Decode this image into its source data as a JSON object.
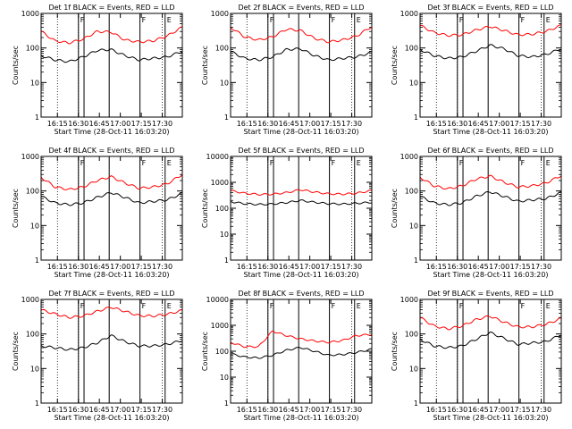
{
  "figure": {
    "ylabel": "Counts/sec",
    "xlabel": "Start Time (28-Oct-11 16:03:20)",
    "time_ticks": [
      "16:15",
      "16:30",
      "16:45",
      "17:00",
      "17:15",
      "17:30"
    ],
    "y_ticks": [
      "1",
      "10",
      "100",
      "1000",
      "10000"
    ],
    "colors": {
      "events": "#000000",
      "lld": "#ff0000",
      "axes": "#000000",
      "background": "#ffffff"
    }
  },
  "chart_data": [
    {
      "type": "line",
      "title": "Det 1f BLACK = Events, RED = LLD",
      "xlabel": "Start Time (28-Oct-11 16:03:20)",
      "ylabel": "Counts/sec",
      "yscale": "log",
      "ylim": [
        1,
        1000
      ],
      "x_unit": "minutes since 16:03:20",
      "annotations": [
        "F",
        "F",
        "E"
      ],
      "dotted_lines_x": [
        11.7,
        26.7,
        86.7
      ],
      "solid_lines_x": [
        26.7,
        30.7,
        48.7,
        70.7,
        88.7
      ],
      "x": [
        0,
        10,
        20,
        30,
        40,
        50,
        60,
        70,
        80,
        90,
        101
      ],
      "series": [
        {
          "name": "LLD",
          "color": "red",
          "values": [
            300,
            160,
            140,
            180,
            300,
            290,
            170,
            150,
            160,
            220,
            400
          ]
        },
        {
          "name": "Events",
          "color": "black",
          "values": [
            60,
            45,
            40,
            55,
            85,
            90,
            60,
            45,
            50,
            55,
            80
          ]
        }
      ]
    },
    {
      "type": "line",
      "title": "Det 2f BLACK = Events, RED = LLD",
      "xlabel": "Start Time (28-Oct-11 16:03:20)",
      "ylabel": "Counts/sec",
      "yscale": "log",
      "ylim": [
        1,
        1000
      ],
      "x_unit": "minutes since 16:03:20",
      "annotations": [
        "F",
        "F",
        "E"
      ],
      "dotted_lines_x": [
        11.7,
        26.7,
        86.7
      ],
      "solid_lines_x": [
        26.7,
        30.7,
        48.7,
        70.7,
        88.7
      ],
      "x": [
        0,
        10,
        20,
        30,
        40,
        50,
        60,
        70,
        80,
        90,
        101
      ],
      "series": [
        {
          "name": "LLD",
          "color": "red",
          "values": [
            400,
            210,
            170,
            210,
            350,
            320,
            190,
            150,
            170,
            220,
            420
          ]
        },
        {
          "name": "Events",
          "color": "black",
          "values": [
            80,
            50,
            45,
            55,
            90,
            95,
            60,
            45,
            50,
            55,
            75
          ]
        }
      ]
    },
    {
      "type": "line",
      "title": "Det 3f BLACK = Events, RED = LLD",
      "xlabel": "Start Time (28-Oct-11 16:03:20)",
      "ylabel": "Counts/sec",
      "yscale": "log",
      "ylim": [
        1,
        1000
      ],
      "x_unit": "minutes since 16:03:20",
      "annotations": [
        "F",
        "F",
        "E"
      ],
      "dotted_lines_x": [
        11.7,
        26.7,
        86.7
      ],
      "solid_lines_x": [
        26.7,
        30.7,
        48.7,
        70.7,
        88.7
      ],
      "x": [
        0,
        10,
        20,
        30,
        40,
        50,
        60,
        70,
        80,
        90,
        101
      ],
      "series": [
        {
          "name": "LLD",
          "color": "red",
          "values": [
            450,
            280,
            230,
            240,
            330,
            420,
            320,
            240,
            250,
            300,
            450
          ]
        },
        {
          "name": "Events",
          "color": "black",
          "values": [
            90,
            60,
            50,
            55,
            80,
            120,
            95,
            60,
            55,
            65,
            95
          ]
        }
      ]
    },
    {
      "type": "line",
      "title": "Det 4f BLACK = Events, RED = LLD",
      "xlabel": "Start Time (28-Oct-11 16:03:20)",
      "ylabel": "Counts/sec",
      "yscale": "log",
      "ylim": [
        1,
        1000
      ],
      "x_unit": "minutes since 16:03:20",
      "annotations": [
        "F",
        "F",
        "E"
      ],
      "dotted_lines_x": [
        11.7,
        26.7,
        86.7
      ],
      "solid_lines_x": [
        26.7,
        30.7,
        48.7,
        70.7,
        88.7
      ],
      "x": [
        0,
        10,
        20,
        30,
        40,
        50,
        60,
        70,
        80,
        90,
        101
      ],
      "series": [
        {
          "name": "LLD",
          "color": "red",
          "values": [
            250,
            130,
            110,
            130,
            200,
            260,
            170,
            120,
            130,
            160,
            300
          ]
        },
        {
          "name": "Events",
          "color": "black",
          "values": [
            70,
            45,
            40,
            45,
            65,
            90,
            65,
            45,
            50,
            55,
            85
          ]
        }
      ]
    },
    {
      "type": "line",
      "title": "Det 5f BLACK = Events, RED = LLD",
      "xlabel": "Start Time (28-Oct-11 16:03:20)",
      "ylabel": "Counts/sec",
      "yscale": "log",
      "ylim": [
        1,
        10000
      ],
      "x_unit": "minutes since 16:03:20",
      "annotations": [
        "F",
        "F",
        "E"
      ],
      "dotted_lines_x": [
        11.7,
        26.7,
        86.7
      ],
      "solid_lines_x": [
        26.7,
        30.7,
        48.7,
        70.7,
        88.7
      ],
      "x": [
        0,
        10,
        20,
        30,
        40,
        50,
        60,
        70,
        80,
        90,
        101
      ],
      "series": [
        {
          "name": "LLD",
          "color": "red",
          "values": [
            480,
            380,
            340,
            350,
            400,
            520,
            420,
            360,
            350,
            380,
            480
          ]
        },
        {
          "name": "Events",
          "color": "black",
          "values": [
            180,
            150,
            140,
            145,
            165,
            200,
            170,
            150,
            145,
            155,
            170
          ]
        }
      ]
    },
    {
      "type": "line",
      "title": "Det 6f BLACK = Events, RED = LLD",
      "xlabel": "Start Time (28-Oct-11 16:03:20)",
      "ylabel": "Counts/sec",
      "yscale": "log",
      "ylim": [
        1,
        1000
      ],
      "x_unit": "minutes since 16:03:20",
      "annotations": [
        "F",
        "F",
        "E"
      ],
      "dotted_lines_x": [
        11.7,
        26.7,
        86.7
      ],
      "solid_lines_x": [
        26.7,
        30.7,
        48.7,
        70.7,
        88.7
      ],
      "x": [
        0,
        10,
        20,
        30,
        40,
        50,
        60,
        70,
        80,
        90,
        101
      ],
      "series": [
        {
          "name": "LLD",
          "color": "red",
          "values": [
            250,
            140,
            115,
            140,
            220,
            270,
            180,
            130,
            140,
            170,
            280
          ]
        },
        {
          "name": "Events",
          "color": "black",
          "values": [
            70,
            45,
            40,
            45,
            70,
            95,
            70,
            50,
            55,
            60,
            90
          ]
        }
      ]
    },
    {
      "type": "line",
      "title": "Det 7f BLACK = Events, RED = LLD",
      "xlabel": "Start Time (28-Oct-11 16:03:20)",
      "ylabel": "Counts/sec",
      "yscale": "log",
      "ylim": [
        1,
        1000
      ],
      "x_unit": "minutes since 16:03:20",
      "annotations": [
        "F",
        "F",
        "E"
      ],
      "dotted_lines_x": [
        11.7,
        26.7,
        86.7
      ],
      "solid_lines_x": [
        26.7,
        30.7,
        48.7,
        70.7,
        88.7
      ],
      "x": [
        0,
        10,
        20,
        30,
        40,
        50,
        60,
        70,
        80,
        90,
        101
      ],
      "series": [
        {
          "name": "LLD",
          "color": "red",
          "values": [
            500,
            380,
            300,
            330,
            450,
            600,
            450,
            340,
            330,
            370,
            480
          ]
        },
        {
          "name": "Events",
          "color": "black",
          "values": [
            45,
            40,
            35,
            40,
            55,
            90,
            60,
            45,
            45,
            50,
            65
          ]
        }
      ]
    },
    {
      "type": "line",
      "title": "Det 8f BLACK = Events, RED = LLD",
      "xlabel": "Start Time (28-Oct-11 16:03:20)",
      "ylabel": "Counts/sec",
      "yscale": "log",
      "ylim": [
        1,
        10000
      ],
      "x_unit": "minutes since 16:03:20",
      "annotations": [
        "F",
        "F",
        "E"
      ],
      "dotted_lines_x": [
        11.7,
        26.7,
        86.7
      ],
      "solid_lines_x": [
        26.7,
        30.7,
        48.7,
        70.7,
        88.7
      ],
      "x": [
        0,
        10,
        20,
        30,
        40,
        50,
        60,
        70,
        80,
        90,
        101
      ],
      "series": [
        {
          "name": "LLD",
          "color": "red",
          "values": [
            220,
            150,
            150,
            600,
            400,
            300,
            250,
            220,
            260,
            400,
            450
          ]
        },
        {
          "name": "Events",
          "color": "black",
          "values": [
            80,
            60,
            55,
            70,
            110,
            140,
            100,
            70,
            75,
            90,
            120
          ]
        }
      ]
    },
    {
      "type": "line",
      "title": "Det 9f BLACK = Events, RED = LLD",
      "xlabel": "Start Time (28-Oct-11 16:03:20)",
      "ylabel": "Counts/sec",
      "yscale": "log",
      "ylim": [
        1,
        1000
      ],
      "x_unit": "minutes since 16:03:20",
      "annotations": [
        "F",
        "F",
        "E"
      ],
      "dotted_lines_x": [
        11.7,
        26.7,
        86.7
      ],
      "solid_lines_x": [
        26.7,
        30.7,
        48.7,
        70.7,
        88.7
      ],
      "x": [
        0,
        10,
        20,
        30,
        40,
        50,
        60,
        70,
        80,
        90,
        101
      ],
      "series": [
        {
          "name": "LLD",
          "color": "red",
          "values": [
            300,
            170,
            140,
            170,
            260,
            330,
            220,
            160,
            160,
            190,
            280
          ]
        },
        {
          "name": "Events",
          "color": "black",
          "values": [
            70,
            45,
            40,
            45,
            70,
            110,
            75,
            50,
            55,
            60,
            95
          ]
        }
      ]
    }
  ]
}
